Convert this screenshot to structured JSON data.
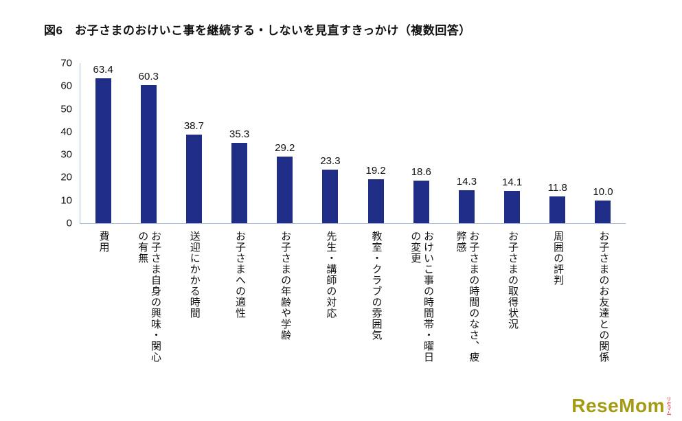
{
  "title": "図6　お子さまのおけいこ事を継続する・しないを見直すきっかけ（複数回答）",
  "chart_data": {
    "type": "bar",
    "title": "図6　お子さまのおけいこ事を継続する・しないを見直すきっかけ（複数回答）",
    "categories": [
      "費用",
      "お子さま自身の興味・関心の有無",
      "送迎にかかる時間",
      "お子さまへの適性",
      "お子さまの年齢や学齢",
      "先生・講師の対応",
      "教室・クラブの雰囲気",
      "おけいこ事の時間帯・曜日の変更",
      "お子さまの時間のなさ、疲弊感",
      "お子さまの取得状況",
      "周囲の評判",
      "お子さまのお友達との関係"
    ],
    "values": [
      63.4,
      60.3,
      38.7,
      35.3,
      29.2,
      23.3,
      19.2,
      18.6,
      14.3,
      14.1,
      11.8,
      10.0
    ],
    "value_labels": [
      "63.4",
      "60.3",
      "38.7",
      "35.3",
      "29.2",
      "23.3",
      "19.2",
      "18.6",
      "14.3",
      "14.1",
      "11.8",
      "10.0"
    ],
    "xlabel": "",
    "ylabel": "",
    "ylim": [
      0,
      70
    ],
    "ytick_step": 10,
    "grid": false,
    "legend": "none",
    "bar_color": "#1f2d87",
    "axis_color": "#a9bede"
  },
  "logo": {
    "text": "ReseMom",
    "sub": "リセマム"
  }
}
